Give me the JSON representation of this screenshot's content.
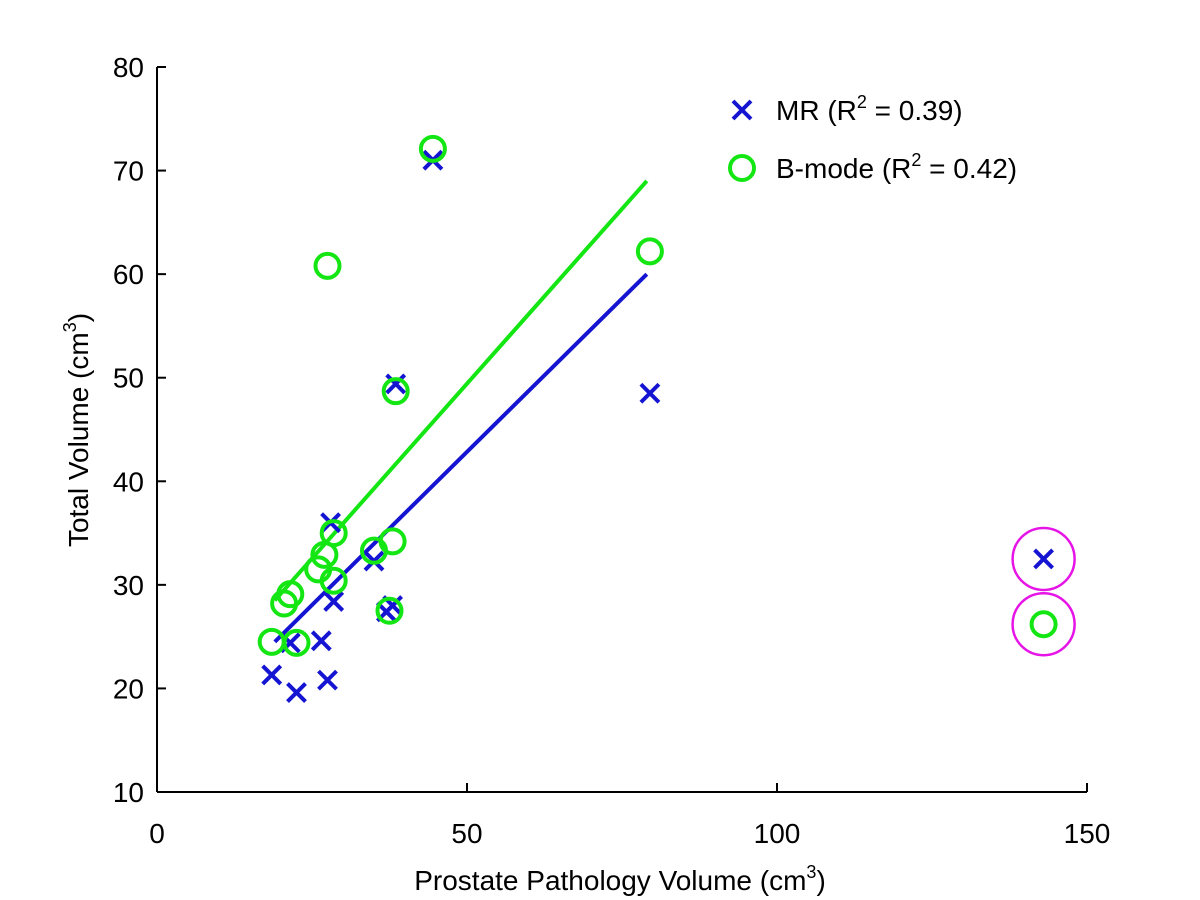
{
  "chart_data": {
    "type": "scatter",
    "xlabel": "Prostate Pathology Volume (cm",
    "xlabel_sup": "3",
    "xlabel_suffix": ")",
    "ylabel": "Total Volume (cm",
    "ylabel_sup": "3",
    "ylabel_suffix": ")",
    "xlim": [
      0,
      150
    ],
    "ylim": [
      10,
      80
    ],
    "xticks": [
      0,
      50,
      100,
      150
    ],
    "yticks": [
      10,
      20,
      30,
      40,
      50,
      60,
      70,
      80
    ],
    "grid": false,
    "legend_position": "top-right",
    "series": [
      {
        "name": "MR (R",
        "name_sup": "2",
        "name_suffix": " = 0.39)",
        "marker": "x",
        "color": "#1414d2",
        "points": [
          [
            18.5,
            21.3
          ],
          [
            22.5,
            19.6
          ],
          [
            26.5,
            24.6
          ],
          [
            27.5,
            20.8
          ],
          [
            28.0,
            36.0
          ],
          [
            28.5,
            28.4
          ],
          [
            21.5,
            24.4
          ],
          [
            35.0,
            32.3
          ],
          [
            37.0,
            27.4
          ],
          [
            38.0,
            28.0
          ],
          [
            38.5,
            49.4
          ],
          [
            44.5,
            71.0
          ],
          [
            79.5,
            48.5
          ],
          [
            143.0,
            32.5
          ]
        ],
        "fit": [
          [
            19.0,
            24.5
          ],
          [
            79.0,
            60.0
          ]
        ]
      },
      {
        "name": "B-mode (R",
        "name_sup": "2",
        "name_suffix": " = 0.42)",
        "marker": "o",
        "color": "#14e614",
        "points": [
          [
            18.5,
            24.5
          ],
          [
            22.5,
            24.4
          ],
          [
            20.5,
            28.2
          ],
          [
            21.5,
            29.1
          ],
          [
            26.0,
            31.5
          ],
          [
            27.0,
            32.9
          ],
          [
            28.5,
            30.4
          ],
          [
            28.5,
            35.0
          ],
          [
            27.5,
            60.8
          ],
          [
            35.0,
            33.3
          ],
          [
            38.0,
            34.2
          ],
          [
            37.5,
            27.5
          ],
          [
            38.5,
            48.7
          ],
          [
            44.5,
            72.1
          ],
          [
            79.5,
            62.2
          ],
          [
            143.0,
            26.2
          ]
        ],
        "fit": [
          [
            19.0,
            28.5
          ],
          [
            79.0,
            69.0
          ]
        ]
      }
    ],
    "highlight": {
      "color": "#e614e6",
      "points": [
        [
          143.0,
          32.5
        ],
        [
          143.0,
          26.2
        ]
      ]
    }
  }
}
